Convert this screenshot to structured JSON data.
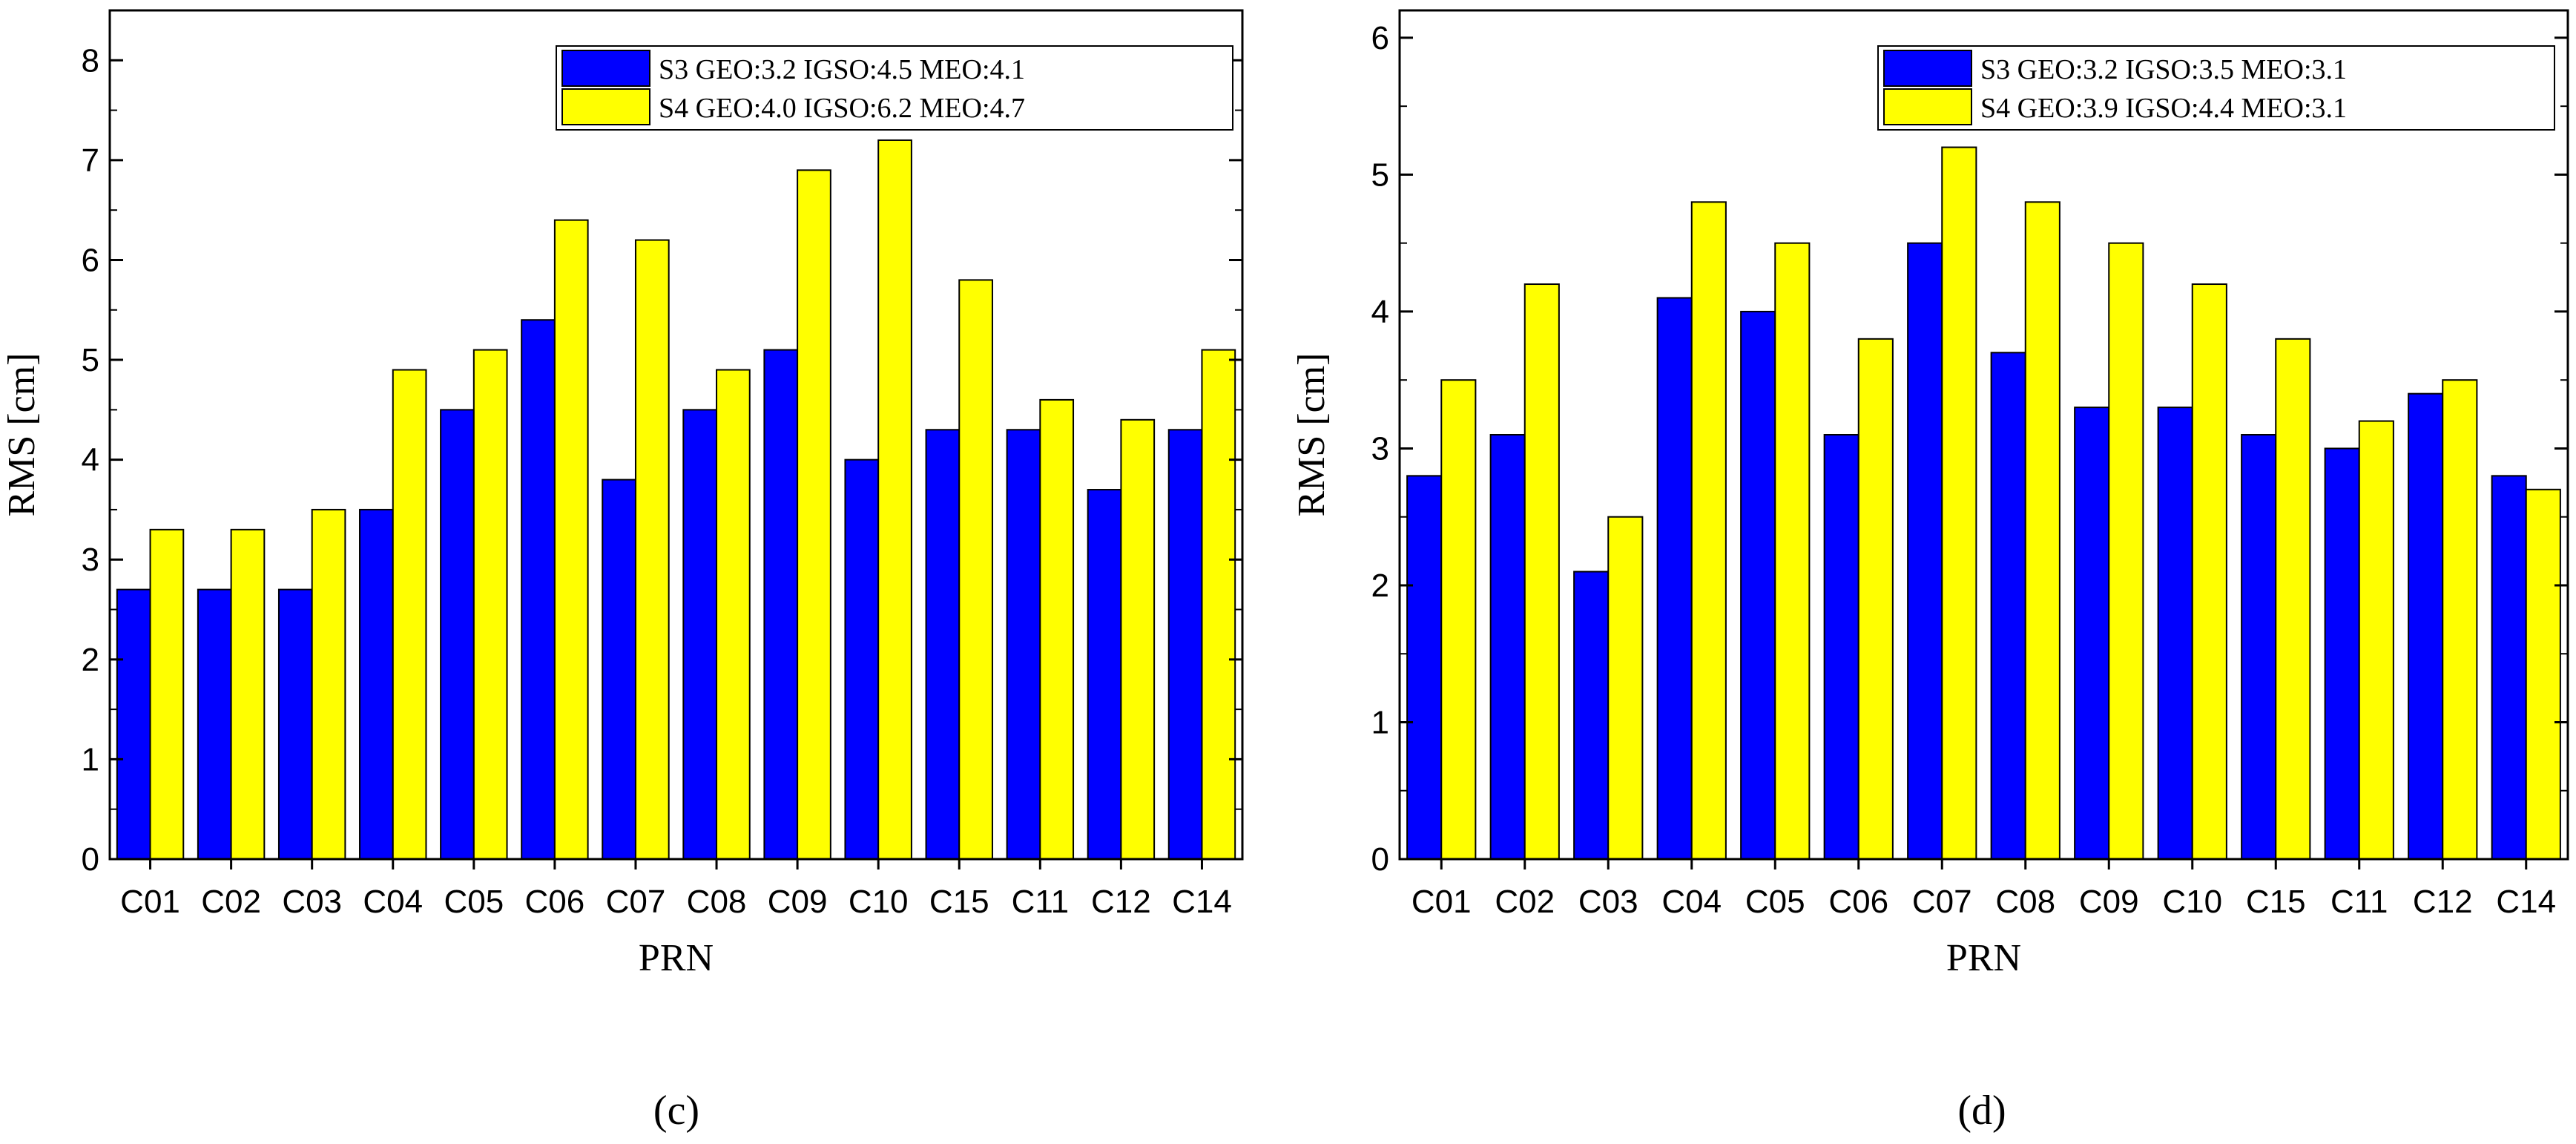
{
  "chart_data": [
    {
      "type": "bar",
      "panel_label": "(c)",
      "categories": [
        "C01",
        "C02",
        "C03",
        "C04",
        "C05",
        "C06",
        "C07",
        "C08",
        "C09",
        "C10",
        "C15",
        "C11",
        "C12",
        "C14"
      ],
      "series": [
        {
          "name": "S3",
          "legend": "S3  GEO:3.2  IGSO:4.5  MEO:4.1",
          "color": "#0000ff",
          "values": [
            2.7,
            2.7,
            2.7,
            3.5,
            4.5,
            5.4,
            3.8,
            4.5,
            5.1,
            4.0,
            4.3,
            4.3,
            3.7,
            4.3
          ]
        },
        {
          "name": "S4",
          "legend": "S4  GEO:4.0  IGSO:6.2  MEO:4.7",
          "color": "#ffff00",
          "values": [
            3.3,
            3.3,
            3.5,
            4.9,
            5.1,
            6.4,
            6.2,
            4.9,
            6.9,
            7.2,
            5.8,
            4.6,
            4.4,
            5.1
          ]
        }
      ],
      "xlabel": "PRN",
      "ylabel": "RMS  [cm]",
      "ylim": [
        0,
        8.5
      ],
      "yticks": [
        "0",
        "1",
        "2",
        "3",
        "4",
        "5",
        "6",
        "7",
        "8"
      ],
      "legend_position": "top-right"
    },
    {
      "type": "bar",
      "panel_label": "(d)",
      "categories": [
        "C01",
        "C02",
        "C03",
        "C04",
        "C05",
        "C06",
        "C07",
        "C08",
        "C09",
        "C10",
        "C15",
        "C11",
        "C12",
        "C14"
      ],
      "series": [
        {
          "name": "S3",
          "legend": "S3  GEO:3.2  IGSO:3.5  MEO:3.1",
          "color": "#0000ff",
          "values": [
            2.8,
            3.1,
            2.1,
            4.1,
            4.0,
            3.1,
            4.5,
            3.7,
            3.3,
            3.3,
            3.1,
            3.0,
            3.4,
            2.8
          ]
        },
        {
          "name": "S4",
          "legend": "S4  GEO:3.9  IGSO:4.4  MEO:3.1",
          "color": "#ffff00",
          "values": [
            3.5,
            4.2,
            2.5,
            4.8,
            4.5,
            3.8,
            5.2,
            4.8,
            4.5,
            4.2,
            3.8,
            3.2,
            3.5,
            2.7
          ]
        }
      ],
      "xlabel": "PRN",
      "ylabel": "RMS  [cm]",
      "ylim": [
        0,
        6.2
      ],
      "yticks": [
        "0",
        "1",
        "2",
        "3",
        "4",
        "5",
        "6"
      ],
      "legend_position": "top-right"
    }
  ]
}
